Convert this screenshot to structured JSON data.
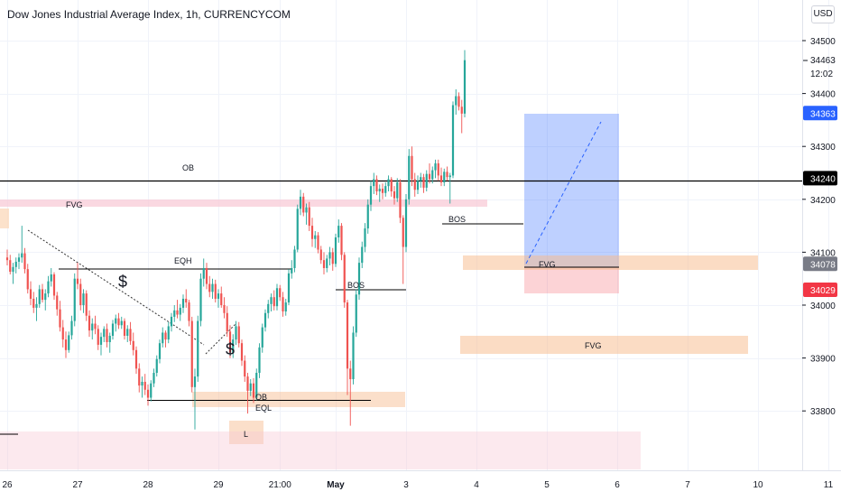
{
  "header": {
    "title": "Dow Jones Industrial Average Index, 1h, CURRENCYCOM",
    "currency_button": "USD"
  },
  "price_axis": {
    "ticks": [
      "34500",
      "34400",
      "34300",
      "34200",
      "34100",
      "34000",
      "33900",
      "33800"
    ],
    "countdown_price": "34463",
    "countdown_time": "12:02",
    "badges": [
      {
        "label": "34363",
        "price": 34363,
        "color": "#2962ff"
      },
      {
        "label": "34240",
        "price": 34240,
        "color": "#000000"
      },
      {
        "label": "34078",
        "price": 34078,
        "color": "#787b86"
      },
      {
        "label": "34029",
        "price": 34029,
        "color": "#f23645"
      }
    ]
  },
  "time_axis": {
    "ticks": [
      {
        "label": "26",
        "bar": 0
      },
      {
        "label": "27",
        "bar": 24
      },
      {
        "label": "28",
        "bar": 48
      },
      {
        "label": "29",
        "bar": 72
      },
      {
        "label": "21:00",
        "bar": 93
      },
      {
        "label": "May",
        "bar": 112
      },
      {
        "label": "3",
        "bar": 136
      },
      {
        "label": "4",
        "bar": 160
      },
      {
        "label": "5",
        "bar": 184
      },
      {
        "label": "6",
        "bar": 208
      },
      {
        "label": "7",
        "bar": 232
      },
      {
        "label": "10",
        "bar": 256
      },
      {
        "label": "11",
        "bar": 280
      }
    ]
  },
  "annotations": {
    "ob_top": "OB",
    "fvg_left": "FVG",
    "eqh": "EQH",
    "dollar_1": "$",
    "dollar_2": "$",
    "bos_1": "BOS",
    "bos_2": "BOS",
    "fvg_right_top": "FVG",
    "fvg_right_mid": "FVG",
    "ob_low": "OB",
    "eql": "EQL",
    "l_label": "L"
  },
  "chart_data": {
    "type": "candlestick",
    "title": "Dow Jones Industrial Average Index, 1h, CURRENCYCOM",
    "ylim": [
      33710,
      34540
    ],
    "up_color": "#26a69a",
    "down_color": "#ef5350",
    "levels": {
      "ob_line": 34240,
      "eqh_line": 34073,
      "eql_line": 33830,
      "bos_1_line": 34033,
      "bos_2_line": 34162,
      "fvg_right_line": 34075
    },
    "candles": [
      {
        "o": 34090,
        "h": 34105,
        "l": 34075,
        "c": 34085
      },
      {
        "o": 34085,
        "h": 34095,
        "l": 34058,
        "c": 34063
      },
      {
        "o": 34063,
        "h": 34080,
        "l": 34040,
        "c": 34072
      },
      {
        "o": 34072,
        "h": 34090,
        "l": 34060,
        "c": 34082
      },
      {
        "o": 34082,
        "h": 34098,
        "l": 34068,
        "c": 34090
      },
      {
        "o": 34090,
        "h": 34150,
        "l": 34080,
        "c": 34098
      },
      {
        "o": 34098,
        "h": 34108,
        "l": 34060,
        "c": 34068
      },
      {
        "o": 34068,
        "h": 34078,
        "l": 34022,
        "c": 34030
      },
      {
        "o": 34030,
        "h": 34045,
        "l": 34000,
        "c": 34012
      },
      {
        "o": 34012,
        "h": 34025,
        "l": 33985,
        "c": 33995
      },
      {
        "o": 33995,
        "h": 34015,
        "l": 33970,
        "c": 34002
      },
      {
        "o": 34002,
        "h": 34038,
        "l": 33995,
        "c": 34030
      },
      {
        "o": 34030,
        "h": 34040,
        "l": 34005,
        "c": 34010
      },
      {
        "o": 34010,
        "h": 34030,
        "l": 33990,
        "c": 34022
      },
      {
        "o": 34022,
        "h": 34055,
        "l": 34015,
        "c": 34045
      },
      {
        "o": 34045,
        "h": 34070,
        "l": 34035,
        "c": 34058
      },
      {
        "o": 34058,
        "h": 34062,
        "l": 34010,
        "c": 34018
      },
      {
        "o": 34018,
        "h": 34025,
        "l": 33980,
        "c": 33992
      },
      {
        "o": 33992,
        "h": 34008,
        "l": 33950,
        "c": 33958
      },
      {
        "o": 33958,
        "h": 33972,
        "l": 33920,
        "c": 33935
      },
      {
        "o": 33935,
        "h": 33950,
        "l": 33900,
        "c": 33915
      },
      {
        "o": 33915,
        "h": 33950,
        "l": 33910,
        "c": 33943
      },
      {
        "o": 33943,
        "h": 33980,
        "l": 33935,
        "c": 33970
      },
      {
        "o": 33970,
        "h": 34060,
        "l": 33960,
        "c": 34050
      },
      {
        "o": 34050,
        "h": 34080,
        "l": 34030,
        "c": 34040
      },
      {
        "o": 34040,
        "h": 34050,
        "l": 33990,
        "c": 34000
      },
      {
        "o": 34000,
        "h": 34030,
        "l": 33985,
        "c": 34022
      },
      {
        "o": 34022,
        "h": 34028,
        "l": 33970,
        "c": 33980
      },
      {
        "o": 33980,
        "h": 33990,
        "l": 33940,
        "c": 33952
      },
      {
        "o": 33952,
        "h": 33975,
        "l": 33935,
        "c": 33965
      },
      {
        "o": 33965,
        "h": 33980,
        "l": 33945,
        "c": 33955
      },
      {
        "o": 33955,
        "h": 33962,
        "l": 33915,
        "c": 33925
      },
      {
        "o": 33925,
        "h": 33948,
        "l": 33905,
        "c": 33940
      },
      {
        "o": 33940,
        "h": 33960,
        "l": 33930,
        "c": 33955
      },
      {
        "o": 33955,
        "h": 33965,
        "l": 33920,
        "c": 33930
      },
      {
        "o": 33930,
        "h": 33948,
        "l": 33910,
        "c": 33942
      },
      {
        "o": 33942,
        "h": 33972,
        "l": 33935,
        "c": 33965
      },
      {
        "o": 33965,
        "h": 33982,
        "l": 33950,
        "c": 33975
      },
      {
        "o": 33975,
        "h": 33985,
        "l": 33955,
        "c": 33962
      },
      {
        "o": 33962,
        "h": 33978,
        "l": 33955,
        "c": 33970
      },
      {
        "o": 33970,
        "h": 33975,
        "l": 33935,
        "c": 33942
      },
      {
        "o": 33942,
        "h": 33962,
        "l": 33930,
        "c": 33955
      },
      {
        "o": 33955,
        "h": 33968,
        "l": 33925,
        "c": 33932
      },
      {
        "o": 33932,
        "h": 33948,
        "l": 33905,
        "c": 33915
      },
      {
        "o": 33915,
        "h": 33922,
        "l": 33870,
        "c": 33880
      },
      {
        "o": 33880,
        "h": 33890,
        "l": 33835,
        "c": 33848
      },
      {
        "o": 33848,
        "h": 33865,
        "l": 33825,
        "c": 33855
      },
      {
        "o": 33855,
        "h": 33870,
        "l": 33830,
        "c": 33840
      },
      {
        "o": 33840,
        "h": 33850,
        "l": 33810,
        "c": 33825
      },
      {
        "o": 33825,
        "h": 33858,
        "l": 33818,
        "c": 33852
      },
      {
        "o": 33852,
        "h": 33880,
        "l": 33845,
        "c": 33872
      },
      {
        "o": 33872,
        "h": 33905,
        "l": 33865,
        "c": 33898
      },
      {
        "o": 33898,
        "h": 33935,
        "l": 33890,
        "c": 33928
      },
      {
        "o": 33928,
        "h": 33958,
        "l": 33920,
        "c": 33948
      },
      {
        "o": 33948,
        "h": 33952,
        "l": 33920,
        "c": 33935
      },
      {
        "o": 33935,
        "h": 33968,
        "l": 33928,
        "c": 33960
      },
      {
        "o": 33960,
        "h": 33985,
        "l": 33950,
        "c": 33978
      },
      {
        "o": 33978,
        "h": 34000,
        "l": 33968,
        "c": 33990
      },
      {
        "o": 33990,
        "h": 34010,
        "l": 33975,
        "c": 33982
      },
      {
        "o": 33982,
        "h": 34002,
        "l": 33970,
        "c": 33995
      },
      {
        "o": 33995,
        "h": 34020,
        "l": 33985,
        "c": 34012
      },
      {
        "o": 34012,
        "h": 34030,
        "l": 33995,
        "c": 34005
      },
      {
        "o": 34005,
        "h": 34010,
        "l": 33960,
        "c": 33970
      },
      {
        "o": 33970,
        "h": 33978,
        "l": 33835,
        "c": 33845
      },
      {
        "o": 33845,
        "h": 33880,
        "l": 33765,
        "c": 33865
      },
      {
        "o": 33865,
        "h": 33980,
        "l": 33855,
        "c": 33970
      },
      {
        "o": 33970,
        "h": 34060,
        "l": 33960,
        "c": 34050
      },
      {
        "o": 34050,
        "h": 34088,
        "l": 34035,
        "c": 34070
      },
      {
        "o": 34070,
        "h": 34080,
        "l": 34030,
        "c": 34040
      },
      {
        "o": 34040,
        "h": 34055,
        "l": 34015,
        "c": 34025
      },
      {
        "o": 34025,
        "h": 34050,
        "l": 34012,
        "c": 34040
      },
      {
        "o": 34040,
        "h": 34048,
        "l": 34005,
        "c": 34012
      },
      {
        "o": 34012,
        "h": 34030,
        "l": 33995,
        "c": 34022
      },
      {
        "o": 34022,
        "h": 34035,
        "l": 33995,
        "c": 34000
      },
      {
        "o": 34000,
        "h": 34015,
        "l": 33975,
        "c": 33985
      },
      {
        "o": 33985,
        "h": 33998,
        "l": 33940,
        "c": 33950
      },
      {
        "o": 33950,
        "h": 33962,
        "l": 33900,
        "c": 33910
      },
      {
        "o": 33910,
        "h": 33945,
        "l": 33900,
        "c": 33935
      },
      {
        "o": 33935,
        "h": 33970,
        "l": 33925,
        "c": 33960
      },
      {
        "o": 33960,
        "h": 33968,
        "l": 33920,
        "c": 33928
      },
      {
        "o": 33928,
        "h": 33935,
        "l": 33885,
        "c": 33895
      },
      {
        "o": 33895,
        "h": 33905,
        "l": 33855,
        "c": 33865
      },
      {
        "o": 33865,
        "h": 33872,
        "l": 33795,
        "c": 33838
      },
      {
        "o": 33838,
        "h": 33860,
        "l": 33828,
        "c": 33852
      },
      {
        "o": 33852,
        "h": 33862,
        "l": 33815,
        "c": 33825
      },
      {
        "o": 33825,
        "h": 33880,
        "l": 33820,
        "c": 33872
      },
      {
        "o": 33872,
        "h": 33928,
        "l": 33862,
        "c": 33920
      },
      {
        "o": 33920,
        "h": 33965,
        "l": 33910,
        "c": 33958
      },
      {
        "o": 33958,
        "h": 33992,
        "l": 33950,
        "c": 33985
      },
      {
        "o": 33985,
        "h": 34010,
        "l": 33975,
        "c": 34002
      },
      {
        "o": 34002,
        "h": 34022,
        "l": 33988,
        "c": 34015
      },
      {
        "o": 34015,
        "h": 34028,
        "l": 33990,
        "c": 33998
      },
      {
        "o": 33998,
        "h": 34040,
        "l": 33990,
        "c": 34032
      },
      {
        "o": 34032,
        "h": 34038,
        "l": 34008,
        "c": 34015
      },
      {
        "o": 34015,
        "h": 34025,
        "l": 33978,
        "c": 33988
      },
      {
        "o": 33988,
        "h": 34012,
        "l": 33980,
        "c": 34005
      },
      {
        "o": 34005,
        "h": 34068,
        "l": 34000,
        "c": 34060
      },
      {
        "o": 34060,
        "h": 34085,
        "l": 34050,
        "c": 34070
      },
      {
        "o": 34070,
        "h": 34112,
        "l": 34062,
        "c": 34105
      },
      {
        "o": 34105,
        "h": 34190,
        "l": 34100,
        "c": 34182
      },
      {
        "o": 34182,
        "h": 34218,
        "l": 34170,
        "c": 34205
      },
      {
        "o": 34205,
        "h": 34212,
        "l": 34168,
        "c": 34175
      },
      {
        "o": 34175,
        "h": 34192,
        "l": 34152,
        "c": 34185
      },
      {
        "o": 34185,
        "h": 34195,
        "l": 34140,
        "c": 34150
      },
      {
        "o": 34150,
        "h": 34165,
        "l": 34110,
        "c": 34125
      },
      {
        "o": 34125,
        "h": 34140,
        "l": 34108,
        "c": 34132
      },
      {
        "o": 34132,
        "h": 34138,
        "l": 34098,
        "c": 34105
      },
      {
        "o": 34105,
        "h": 34112,
        "l": 34078,
        "c": 34085
      },
      {
        "o": 34085,
        "h": 34100,
        "l": 34058,
        "c": 34070
      },
      {
        "o": 34070,
        "h": 34095,
        "l": 34062,
        "c": 34088
      },
      {
        "o": 34088,
        "h": 34110,
        "l": 34075,
        "c": 34100
      },
      {
        "o": 34100,
        "h": 34108,
        "l": 34065,
        "c": 34078
      },
      {
        "o": 34078,
        "h": 34135,
        "l": 34072,
        "c": 34128
      },
      {
        "o": 34128,
        "h": 34162,
        "l": 34118,
        "c": 34150
      },
      {
        "o": 34150,
        "h": 34155,
        "l": 34085,
        "c": 34095
      },
      {
        "o": 34095,
        "h": 34100,
        "l": 33995,
        "c": 34005
      },
      {
        "o": 34005,
        "h": 34010,
        "l": 33830,
        "c": 33880
      },
      {
        "o": 33880,
        "h": 33895,
        "l": 33772,
        "c": 33860
      },
      {
        "o": 33860,
        "h": 33960,
        "l": 33850,
        "c": 33948
      },
      {
        "o": 33948,
        "h": 34030,
        "l": 33940,
        "c": 34020
      },
      {
        "o": 34020,
        "h": 34090,
        "l": 34010,
        "c": 34080
      },
      {
        "o": 34080,
        "h": 34120,
        "l": 34070,
        "c": 34110
      },
      {
        "o": 34110,
        "h": 34155,
        "l": 34100,
        "c": 34145
      },
      {
        "o": 34145,
        "h": 34200,
        "l": 34135,
        "c": 34190
      },
      {
        "o": 34190,
        "h": 34235,
        "l": 34178,
        "c": 34225
      },
      {
        "o": 34225,
        "h": 34250,
        "l": 34210,
        "c": 34238
      },
      {
        "o": 34238,
        "h": 34245,
        "l": 34208,
        "c": 34215
      },
      {
        "o": 34215,
        "h": 34228,
        "l": 34195,
        "c": 34220
      },
      {
        "o": 34220,
        "h": 34230,
        "l": 34200,
        "c": 34212
      },
      {
        "o": 34212,
        "h": 34232,
        "l": 34205,
        "c": 34225
      },
      {
        "o": 34225,
        "h": 34245,
        "l": 34215,
        "c": 34238
      },
      {
        "o": 34238,
        "h": 34242,
        "l": 34205,
        "c": 34215
      },
      {
        "o": 34215,
        "h": 34225,
        "l": 34190,
        "c": 34202
      },
      {
        "o": 34202,
        "h": 34240,
        "l": 34195,
        "c": 34232
      },
      {
        "o": 34232,
        "h": 34238,
        "l": 34155,
        "c": 34165
      },
      {
        "o": 34165,
        "h": 34170,
        "l": 34040,
        "c": 34110
      },
      {
        "o": 34110,
        "h": 34210,
        "l": 34100,
        "c": 34200
      },
      {
        "o": 34200,
        "h": 34295,
        "l": 34190,
        "c": 34282
      },
      {
        "o": 34282,
        "h": 34300,
        "l": 34225,
        "c": 34238
      },
      {
        "o": 34238,
        "h": 34250,
        "l": 34205,
        "c": 34218
      },
      {
        "o": 34218,
        "h": 34245,
        "l": 34210,
        "c": 34235
      },
      {
        "o": 34235,
        "h": 34250,
        "l": 34222,
        "c": 34242
      },
      {
        "o": 34242,
        "h": 34248,
        "l": 34212,
        "c": 34222
      },
      {
        "o": 34222,
        "h": 34255,
        "l": 34215,
        "c": 34248
      },
      {
        "o": 34248,
        "h": 34268,
        "l": 34230,
        "c": 34238
      },
      {
        "o": 34238,
        "h": 34262,
        "l": 34230,
        "c": 34255
      },
      {
        "o": 34255,
        "h": 34275,
        "l": 34240,
        "c": 34268
      },
      {
        "o": 34268,
        "h": 34275,
        "l": 34235,
        "c": 34245
      },
      {
        "o": 34245,
        "h": 34260,
        "l": 34225,
        "c": 34232
      },
      {
        "o": 34232,
        "h": 34258,
        "l": 34225,
        "c": 34252
      },
      {
        "o": 34252,
        "h": 34262,
        "l": 34235,
        "c": 34242
      },
      {
        "o": 34242,
        "h": 34250,
        "l": 34192,
        "c": 34245
      },
      {
        "o": 34245,
        "h": 34385,
        "l": 34240,
        "c": 34378
      },
      {
        "o": 34378,
        "h": 34408,
        "l": 34360,
        "c": 34395
      },
      {
        "o": 34395,
        "h": 34402,
        "l": 34368,
        "c": 34375
      },
      {
        "o": 34375,
        "h": 34388,
        "l": 34325,
        "c": 34362
      },
      {
        "o": 34362,
        "h": 34482,
        "l": 34355,
        "c": 34463
      }
    ]
  }
}
